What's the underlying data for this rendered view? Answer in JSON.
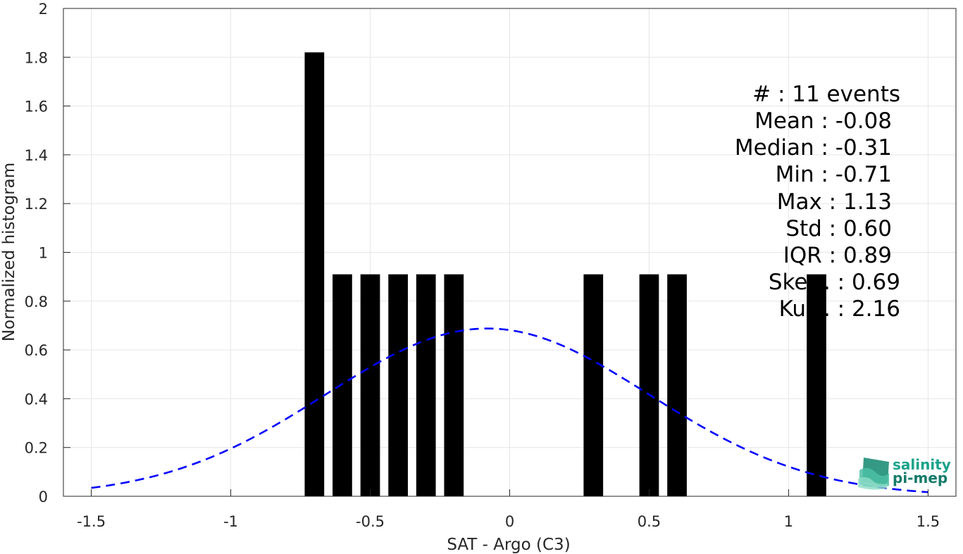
{
  "chart_data": {
    "type": "bar",
    "xlabel": "SAT - Argo (C3)",
    "ylabel": "Normalized histogram",
    "xlim": [
      -1.6,
      1.6
    ],
    "ylim": [
      0,
      2
    ],
    "x_ticks": [
      "-1.5",
      "-1",
      "-0.5",
      "0",
      "0.5",
      "1",
      "1.5"
    ],
    "y_ticks": [
      "0",
      "0.2",
      "0.4",
      "0.6",
      "0.8",
      "1",
      "1.2",
      "1.4",
      "1.6",
      "1.8",
      "2"
    ],
    "grid": true,
    "bar_width": 0.07,
    "bars": [
      {
        "x": -0.7,
        "value": 1.82
      },
      {
        "x": -0.6,
        "value": 0.91
      },
      {
        "x": -0.5,
        "value": 0.91
      },
      {
        "x": -0.4,
        "value": 0.91
      },
      {
        "x": -0.3,
        "value": 0.91
      },
      {
        "x": -0.2,
        "value": 0.91
      },
      {
        "x": 0.3,
        "value": 0.91
      },
      {
        "x": 0.5,
        "value": 0.91
      },
      {
        "x": 0.6,
        "value": 0.91
      },
      {
        "x": 1.1,
        "value": 0.91
      }
    ],
    "fit_curve": {
      "style": "dashed",
      "color": "#0000ff",
      "mean": -0.08,
      "std": 0.58,
      "x_range": [
        -1.5,
        1.5
      ]
    },
    "bar_color": "#000000",
    "stats_lines": [
      "#  : 11 events",
      "Mean : -0.08",
      "Median : -0.31",
      "Min : -0.71",
      "Max : 1.13",
      "Std : 0.60",
      "IQR : 0.89",
      "Skew. : 0.69",
      "Kurt. : 2.16"
    ]
  },
  "logo": {
    "line1": "salinity",
    "line2": "pi-mep",
    "color": "#1aa38c"
  }
}
